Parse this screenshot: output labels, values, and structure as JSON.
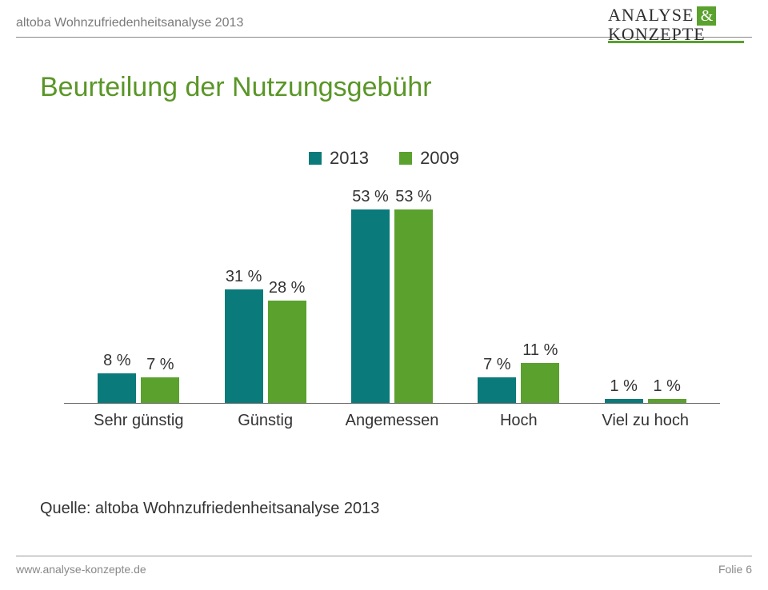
{
  "header": {
    "subtitle": "altoba Wohnzufriedenheitsanalyse 2013"
  },
  "logo": {
    "line1": "ANALYSE",
    "amp": "&",
    "line2": "KONZEPTE",
    "accent_color": "#5aa12e",
    "text_color": "#2e2e2e"
  },
  "title": {
    "text": "Beurteilung der Nutzungsgebühr",
    "color": "#5a9627",
    "fontsize": 34
  },
  "legend": {
    "items": [
      {
        "label": "2013",
        "color": "#0a7a7a"
      },
      {
        "label": "2009",
        "color": "#5aa12e"
      }
    ]
  },
  "chart": {
    "type": "bar",
    "ylim_max": 58,
    "series_colors": {
      "s2013": "#0a7a7a",
      "s2009": "#5aa12e"
    },
    "label_fontsize": 20,
    "category_fontsize": 20,
    "groups": [
      {
        "category": "Sehr günstig",
        "v2013": 8,
        "l2013": "8 %",
        "v2009": 7,
        "l2009": "7 %"
      },
      {
        "category": "Günstig",
        "v2013": 31,
        "l2013": "31 %",
        "v2009": 28,
        "l2009": "28 %"
      },
      {
        "category": "Angemessen",
        "v2013": 53,
        "l2013": "53 %",
        "v2009": 53,
        "l2009": "53 %"
      },
      {
        "category": "Hoch",
        "v2013": 7,
        "l2013": "7 %",
        "v2009": 11,
        "l2009": "11 %"
      },
      {
        "category": "Viel zu hoch",
        "v2013": 1,
        "l2013": "1 %",
        "v2009": 1,
        "l2009": "1 %"
      }
    ]
  },
  "source": {
    "text": "Quelle: altoba Wohnzufriedenheitsanalyse 2013"
  },
  "footer": {
    "left": "www.analyse-konzepte.de",
    "right": "Folie 6"
  }
}
